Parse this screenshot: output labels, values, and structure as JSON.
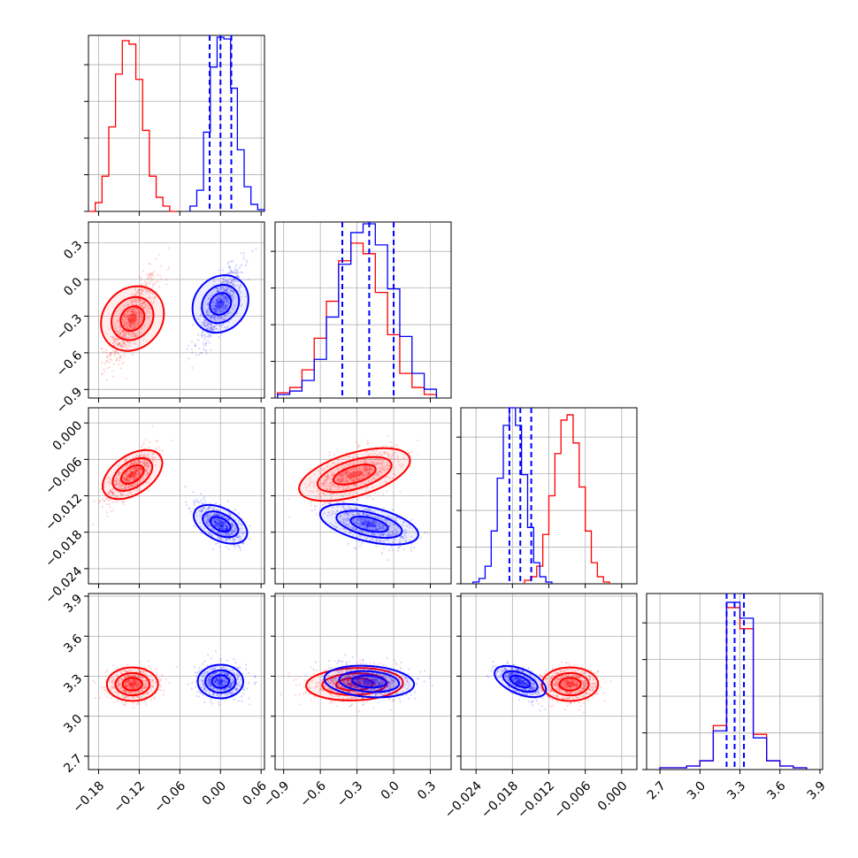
{
  "chart_data": {
    "type": "corner",
    "grid": true,
    "params": [
      {
        "ticks": [
          "−0.18",
          "−0.12",
          "−0.06",
          "0.00",
          "0.06"
        ],
        "tick_values": [
          -0.18,
          -0.12,
          -0.06,
          0.0,
          0.06
        ],
        "range": [
          -0.195,
          0.065
        ]
      },
      {
        "ticks": [
          "−0.9",
          "−0.6",
          "−0.3",
          "0.0",
          "0.3"
        ],
        "tick_values": [
          -0.9,
          -0.6,
          -0.3,
          0.0,
          0.3
        ],
        "range": [
          -0.97,
          0.47
        ]
      },
      {
        "ticks": [
          "−0.024",
          "−0.018",
          "−0.012",
          "−0.006",
          "0.000"
        ],
        "tick_values": [
          -0.024,
          -0.018,
          -0.012,
          -0.006,
          0.0
        ],
        "range": [
          -0.0265,
          0.0025
        ]
      },
      {
        "ticks": [
          "2.7",
          "3.0",
          "3.3",
          "3.6",
          "3.9"
        ],
        "tick_values": [
          2.7,
          3.0,
          3.3,
          3.6,
          3.9
        ],
        "range": [
          2.6,
          3.92
        ]
      }
    ],
    "series": [
      {
        "color": "#ff0000",
        "means": [
          -0.13,
          -0.32,
          -0.0085,
          3.24
        ],
        "sds": [
          0.018,
          0.18,
          0.0022,
          0.06
        ],
        "corr": {
          "1-0": 0.8,
          "2-0": 0.7,
          "2-1": 0.55,
          "3-0": 0.0,
          "3-1": 0.1,
          "3-2": 0.0
        },
        "quantiles": [],
        "histograms": [
          {
            "edges": [
              -0.195,
              -0.185,
              -0.175,
              -0.165,
              -0.155,
              -0.145,
              -0.135,
              -0.125,
              -0.115,
              -0.105,
              -0.095,
              -0.085,
              -0.075,
              -0.065
            ],
            "counts": [
              0,
              0.05,
              0.2,
              0.48,
              0.78,
              0.97,
              0.95,
              0.75,
              0.46,
              0.2,
              0.08,
              0.03,
              0.0
            ]
          },
          {
            "edges": [
              -0.95,
              -0.85,
              -0.75,
              -0.65,
              -0.55,
              -0.45,
              -0.35,
              -0.25,
              -0.15,
              -0.05,
              0.05,
              0.15,
              0.25,
              0.35
            ],
            "counts": [
              0.03,
              0.06,
              0.16,
              0.34,
              0.55,
              0.78,
              0.88,
              0.82,
              0.6,
              0.36,
              0.14,
              0.06,
              0.02
            ]
          },
          {
            "edges": [
              -0.016,
              -0.015,
              -0.014,
              -0.013,
              -0.012,
              -0.011,
              -0.01,
              -0.009,
              -0.008,
              -0.007,
              -0.006,
              -0.005,
              -0.004,
              -0.003,
              -0.002
            ],
            "counts": [
              0.02,
              0.04,
              0.1,
              0.28,
              0.5,
              0.74,
              0.93,
              0.96,
              0.8,
              0.55,
              0.3,
              0.12,
              0.04,
              0.01
            ]
          },
          {
            "edges": [
              2.7,
              2.9,
              3.0,
              3.1,
              3.2,
              3.3,
              3.4,
              3.5,
              3.6,
              3.7,
              3.8
            ],
            "counts": [
              0.01,
              0.02,
              0.05,
              0.25,
              0.92,
              0.8,
              0.2,
              0.05,
              0.02,
              0.01
            ]
          }
        ]
      },
      {
        "color": "#0000ff",
        "means": [
          0.0,
          -0.2,
          -0.0167,
          3.26
        ],
        "sds": [
          0.016,
          0.16,
          0.0017,
          0.06
        ],
        "corr": {
          "1-0": 0.8,
          "2-0": -0.6,
          "2-1": -0.5,
          "3-0": 0.0,
          "3-1": -0.2,
          "3-2": -0.6
        },
        "quantiles": [
          [
            -0.016,
            0.0,
            0.016
          ],
          [
            -0.42,
            -0.2,
            0.0
          ],
          [
            -0.0185,
            -0.0167,
            -0.0149
          ],
          [
            3.2,
            3.26,
            3.33
          ]
        ],
        "histograms": [
          {
            "edges": [
              -0.045,
              -0.035,
              -0.025,
              -0.015,
              -0.005,
              0.005,
              0.015,
              0.025,
              0.035,
              0.045,
              0.055,
              0.065
            ],
            "counts": [
              0.03,
              0.12,
              0.45,
              0.82,
              0.99,
              0.98,
              0.7,
              0.35,
              0.14,
              0.04,
              0.01
            ]
          },
          {
            "edges": [
              -0.95,
              -0.85,
              -0.75,
              -0.65,
              -0.55,
              -0.45,
              -0.35,
              -0.25,
              -0.15,
              -0.05,
              0.05,
              0.15,
              0.25,
              0.35
            ],
            "counts": [
              0.02,
              0.04,
              0.1,
              0.22,
              0.46,
              0.76,
              0.94,
              0.99,
              0.87,
              0.62,
              0.35,
              0.14,
              0.05
            ]
          },
          {
            "edges": [
              -0.0245,
              -0.0235,
              -0.0225,
              -0.0215,
              -0.0205,
              -0.0195,
              -0.0185,
              -0.0175,
              -0.0165,
              -0.0155,
              -0.0145,
              -0.0135,
              -0.0125,
              -0.0115
            ],
            "counts": [
              0.01,
              0.03,
              0.1,
              0.3,
              0.6,
              0.9,
              1.0,
              0.9,
              0.62,
              0.32,
              0.12,
              0.04,
              0.01
            ]
          },
          {
            "edges": [
              2.7,
              2.9,
              3.0,
              3.1,
              3.2,
              3.3,
              3.4,
              3.5,
              3.6,
              3.7,
              3.8
            ],
            "counts": [
              0.01,
              0.02,
              0.05,
              0.22,
              0.95,
              0.86,
              0.18,
              0.05,
              0.02,
              0.01
            ]
          }
        ]
      }
    ]
  }
}
